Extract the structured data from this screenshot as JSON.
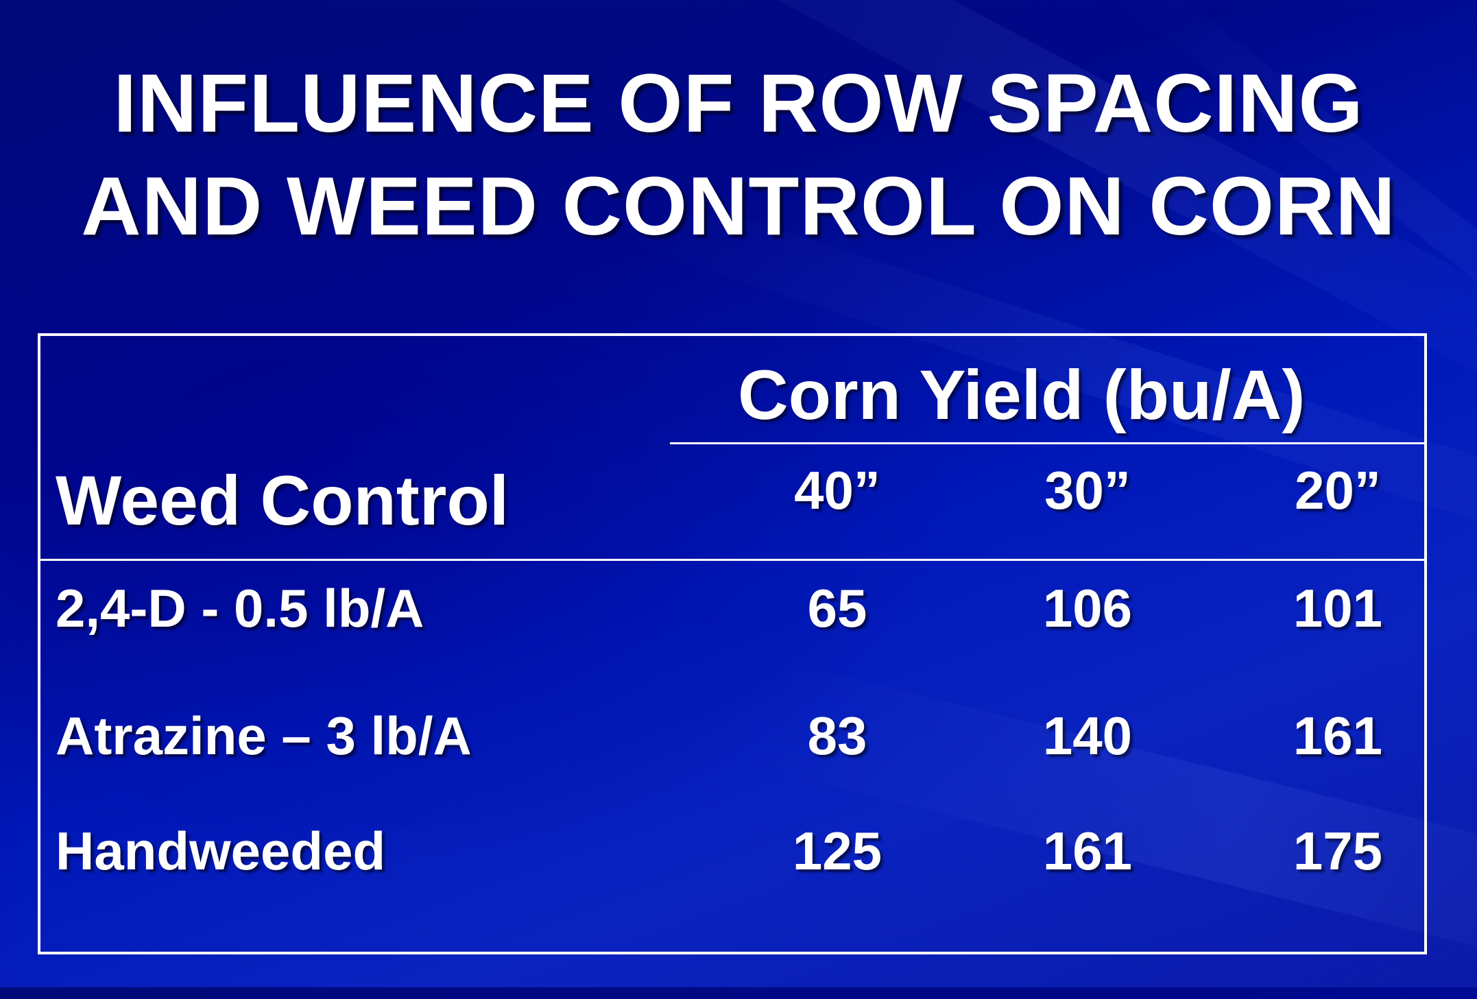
{
  "slide": {
    "title_lines": [
      "INFLUENCE OF ROW SPACING",
      "AND WEED CONTROL ON CORN"
    ]
  },
  "table": {
    "group_header": "Corn Yield (bu/A)",
    "row_header": "Weed Control",
    "columns": [
      "40”",
      "30”",
      "20”"
    ],
    "rows": [
      {
        "label": "2,4-D - 0.5 lb/A",
        "values": [
          "65",
          "106",
          "101"
        ]
      },
      {
        "label": "Atrazine – 3 lb/A",
        "values": [
          "83",
          "140",
          "161"
        ]
      },
      {
        "label": "Handweeded",
        "values": [
          "125",
          "161",
          "175"
        ]
      }
    ]
  },
  "colors": {
    "background_primary": "#00088a",
    "background_secondary": "#0a22bf",
    "text": "#ffffff",
    "rule": "#ffffff"
  }
}
